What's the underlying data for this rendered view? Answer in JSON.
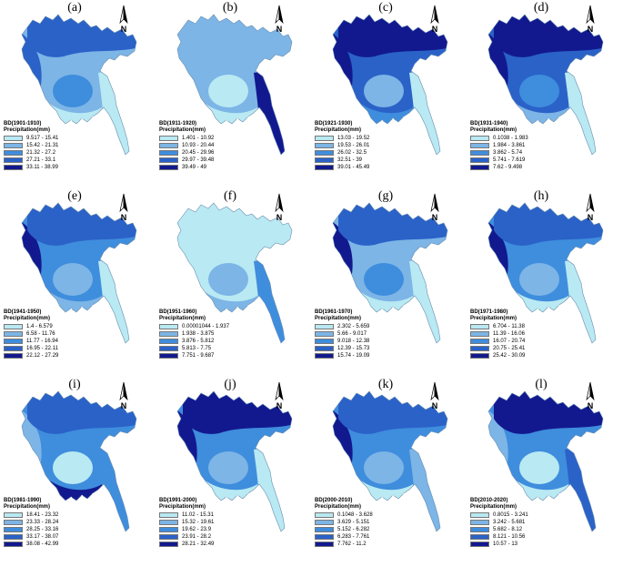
{
  "colors": {
    "c1": "#b9e9f2",
    "c2": "#7cb5e6",
    "c3": "#3f8ddd",
    "c4": "#2a62c8",
    "c5": "#12198f"
  },
  "north_label": "N",
  "panels": [
    {
      "label": "(a)",
      "title": "BD(1901-1910)",
      "subtitle": "Precipitation(mm)",
      "classes": [
        "9.517 - 15.41",
        "15.42 - 21.31",
        "21.32 - 27.2",
        "27.21 - 33.1",
        "33.11 - 38.99"
      ]
    },
    {
      "label": "(b)",
      "title": "BD(1911-1920)",
      "subtitle": "Precipitation(mm)",
      "classes": [
        "1.401 - 10.92",
        "10.93 - 20.44",
        "20.45 - 29.96",
        "29.97 - 39.48",
        "39.49 - 49"
      ]
    },
    {
      "label": "(c)",
      "title": "BD(1921-1930)",
      "subtitle": "Precipitation(mm)",
      "classes": [
        "13.03 - 19.52",
        "19.53 - 26.01",
        "26.02 - 32.5",
        "32.51 - 39",
        "39.01 - 45.49"
      ]
    },
    {
      "label": "(d)",
      "title": "BD(1931-1940)",
      "subtitle": "Precipitation(mm)",
      "classes": [
        "0.1038 - 1.983",
        "1.984 - 3.861",
        "3.862 - 5.74",
        "5.741 - 7.619",
        "7.62 - 9.498"
      ]
    },
    {
      "label": "(e)",
      "title": "BD(1941-1950)",
      "subtitle": "Precipitation(mm)",
      "classes": [
        "1.4 - 6.579",
        "6.58 - 11.76",
        "11.77 - 16.94",
        "16.95 - 22.11",
        "22.12 - 27.29"
      ]
    },
    {
      "label": "(f)",
      "title": "BD(1951-1960)",
      "subtitle": "Precipitation(mm)",
      "classes": [
        "0.00001044 - 1.937",
        "1.938 - 3.875",
        "3.876 - 5.812",
        "5.813 - 7.75",
        "7.751 - 9.687"
      ]
    },
    {
      "label": "(g)",
      "title": "BD(1961-1970)",
      "subtitle": "Precipitation(mm)",
      "classes": [
        "2.302 - 5.659",
        "5.66 - 9.017",
        "9.018 - 12.38",
        "12.39 - 15.73",
        "15.74 - 19.09"
      ]
    },
    {
      "label": "(h)",
      "title": "BD(1971-1980)",
      "subtitle": "Precipitation(mm)",
      "classes": [
        "6.704 - 11.38",
        "11.39 - 16.06",
        "16.07 - 20.74",
        "20.75 - 25.41",
        "25.42 - 30.09"
      ]
    },
    {
      "label": "(i)",
      "title": "BD(1981-1990)",
      "subtitle": "Precipitation(mm)",
      "classes": [
        "18.41 - 23.32",
        "23.33 - 28.24",
        "28.25 - 33.16",
        "33.17 - 38.07",
        "38.08 - 42.99"
      ]
    },
    {
      "label": "(j)",
      "title": "BD(1991-2000)",
      "subtitle": "Precipitation(mm)",
      "classes": [
        "11.02 - 15.31",
        "15.32 - 19.61",
        "19.62 - 23.9",
        "23.91 - 28.2",
        "28.21 - 32.49"
      ]
    },
    {
      "label": "(k)",
      "title": "BD(2000-2010)",
      "subtitle": "Precipitation(mm)",
      "classes": [
        "0.1048 - 3.628",
        "3.629 - 5.151",
        "5.152 - 6.282",
        "6.283 - 7.761",
        "7.762 - 11.2"
      ]
    },
    {
      "label": "(l)",
      "title": "BD(2010-2020)",
      "subtitle": "Precipitation(mm)",
      "classes": [
        "0.8015 - 3.241",
        "3.242 - 5.681",
        "5.682 - 8.12",
        "8.121 - 10.56",
        "10.57 - 13"
      ]
    }
  ]
}
